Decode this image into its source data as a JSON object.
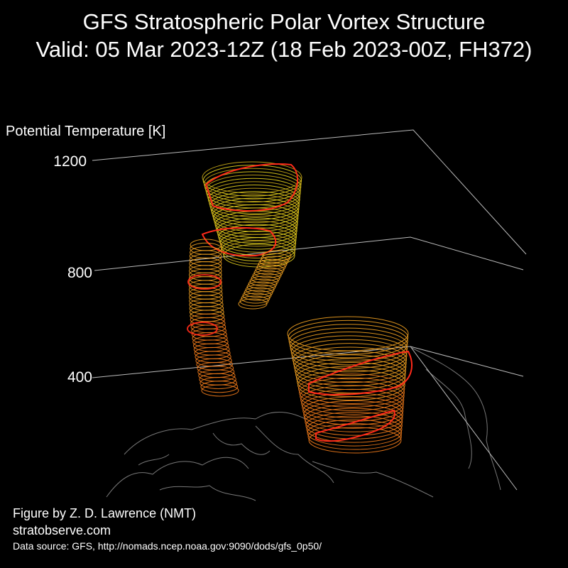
{
  "title_line1": "GFS Stratospheric Polar Vortex Structure",
  "title_line2": "Valid: 05 Mar 2023-12Z  (18 Feb 2023-00Z, FH372)",
  "credit_author": "Figure by Z. D. Lawrence (NMT)",
  "credit_site": "stratobserve.com",
  "data_source": "Data source: GFS, http://nomads.ncep.noaa.gov:9090/dods/gfs_0p50/",
  "colors": {
    "background": "#000000",
    "axis": "#bbbbbb",
    "coastline": "#777777",
    "vortex_edge": "#ff2a1a",
    "upper_fill": "#e6d21e",
    "mid_fill": "#f0a020",
    "lower_fill": "#f07a1a"
  },
  "chart_data": {
    "type": "3d-isosurface",
    "zlabel": "Potential Temperature [K]",
    "z_ticks": [
      "400",
      "800",
      "1200"
    ],
    "z_tick_values": [
      400,
      800,
      1200
    ],
    "grid": true,
    "vortex_lobes": [
      {
        "name": "upper lobe",
        "theta_range": [
          900,
          1200
        ]
      },
      {
        "name": "connecting column",
        "theta_range": [
          500,
          800
        ]
      },
      {
        "name": "lower lobe",
        "theta_range": [
          350,
          480
        ]
      }
    ]
  }
}
